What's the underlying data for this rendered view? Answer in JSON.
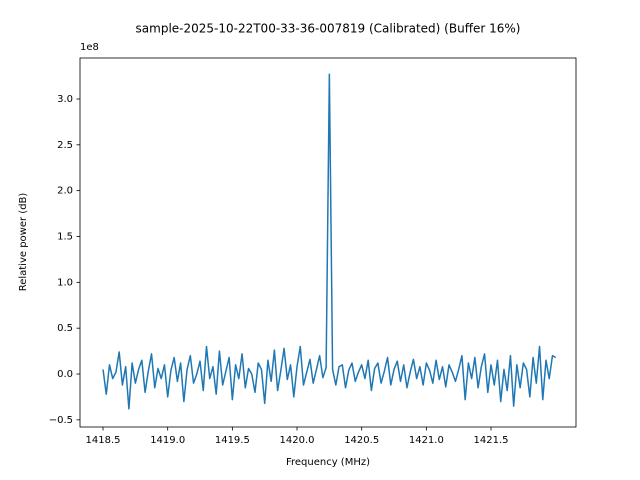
{
  "chart_data": {
    "type": "line",
    "title": "sample-2025-10-22T00-33-36-007819 (Calibrated) (Buffer 16%)",
    "x_label": "Frequency (MHz)",
    "y_label": "Relative power (dB)",
    "y_offset_label": "1e8",
    "color": "#1f77b4",
    "xlim": [
      1418.322,
      1422.157
    ],
    "ylim": [
      -0.578,
      3.447
    ],
    "xticks": [
      1418.5,
      {
        "value": 1419,
        "label": "1419.0"
      },
      1419.5,
      {
        "value": 1420,
        "label": "1420.0"
      },
      1420.5,
      {
        "value": 1421,
        "label": "1421.0"
      },
      1421.5
    ],
    "yticks": [
      {
        "value": -0.5,
        "label": "−0.5"
      },
      {
        "value": 0,
        "label": "0.0"
      },
      0.5,
      {
        "value": 1,
        "label": "1.0"
      },
      1.5,
      {
        "value": 2,
        "label": "2.0"
      },
      2.5,
      {
        "value": 3,
        "label": "3.0"
      }
    ],
    "x": [
      1418.5,
      1418.525,
      1418.55,
      1418.575,
      1418.6,
      1418.625,
      1418.65,
      1418.675,
      1418.7,
      1418.725,
      1418.75,
      1418.775,
      1418.8,
      1418.825,
      1418.85,
      1418.875,
      1418.9,
      1418.925,
      1418.95,
      1418.975,
      1419.0,
      1419.025,
      1419.05,
      1419.075,
      1419.1,
      1419.125,
      1419.15,
      1419.175,
      1419.2,
      1419.225,
      1419.25,
      1419.275,
      1419.3,
      1419.325,
      1419.35,
      1419.375,
      1419.4,
      1419.425,
      1419.45,
      1419.475,
      1419.5,
      1419.525,
      1419.55,
      1419.575,
      1419.6,
      1419.625,
      1419.65,
      1419.675,
      1419.7,
      1419.725,
      1419.75,
      1419.775,
      1419.8,
      1419.825,
      1419.85,
      1419.875,
      1419.9,
      1419.925,
      1419.95,
      1419.975,
      1420.0,
      1420.025,
      1420.05,
      1420.075,
      1420.1,
      1420.125,
      1420.15,
      1420.175,
      1420.2,
      1420.225,
      1420.25,
      1420.275,
      1420.3,
      1420.325,
      1420.35,
      1420.375,
      1420.4,
      1420.425,
      1420.45,
      1420.475,
      1420.5,
      1420.525,
      1420.55,
      1420.575,
      1420.6,
      1420.625,
      1420.65,
      1420.675,
      1420.7,
      1420.725,
      1420.75,
      1420.775,
      1420.8,
      1420.825,
      1420.85,
      1420.875,
      1420.9,
      1420.925,
      1420.95,
      1420.975,
      1421.0,
      1421.025,
      1421.05,
      1421.075,
      1421.1,
      1421.125,
      1421.15,
      1421.175,
      1421.2,
      1421.225,
      1421.25,
      1421.275,
      1421.3,
      1421.325,
      1421.35,
      1421.375,
      1421.4,
      1421.425,
      1421.45,
      1421.475,
      1421.5,
      1421.525,
      1421.55,
      1421.575,
      1421.6,
      1421.625,
      1421.65,
      1421.675,
      1421.7,
      1421.725,
      1421.75,
      1421.775,
      1421.8,
      1421.825,
      1421.85,
      1421.875,
      1421.9,
      1421.925,
      1421.95,
      1421.975,
      1422.0
    ],
    "values": [
      0.05,
      -0.22,
      0.1,
      -0.05,
      0.02,
      0.24,
      -0.12,
      0.08,
      -0.38,
      0.12,
      -0.1,
      0.05,
      0.15,
      -0.2,
      0.03,
      0.22,
      -0.15,
      0.06,
      -0.05,
      0.1,
      -0.25,
      0.04,
      0.18,
      -0.08,
      0.12,
      -0.3,
      0.05,
      0.2,
      -0.1,
      0.0,
      0.14,
      -0.18,
      0.3,
      -0.05,
      0.08,
      -0.22,
      0.25,
      -0.12,
      0.03,
      0.18,
      -0.28,
      0.1,
      -0.05,
      0.22,
      -0.15,
      0.06,
      0.0,
      -0.2,
      0.12,
      0.05,
      -0.32,
      0.15,
      -0.08,
      0.26,
      -0.18,
      0.04,
      0.28,
      -0.06,
      0.1,
      -0.25,
      0.08,
      0.3,
      -0.12,
      0.02,
      0.16,
      -0.1,
      0.05,
      0.2,
      -0.04,
      0.07,
      3.27,
      0.05,
      -0.12,
      0.08,
      0.1,
      -0.15,
      0.04,
      0.12,
      -0.08,
      0.02,
      0.1,
      -0.05,
      0.15,
      -0.18,
      0.06,
      0.12,
      -0.1,
      0.03,
      0.18,
      -0.12,
      0.05,
      0.14,
      -0.08,
      0.1,
      -0.15,
      0.02,
      0.16,
      -0.05,
      0.08,
      -0.12,
      0.12,
      0.04,
      -0.1,
      0.15,
      -0.06,
      0.08,
      -0.14,
      0.1,
      0.02,
      -0.08,
      0.05,
      0.2,
      -0.28,
      0.12,
      -0.05,
      0.18,
      -0.15,
      0.08,
      0.22,
      -0.2,
      0.1,
      -0.12,
      0.15,
      -0.3,
      0.05,
      -0.18,
      0.2,
      -0.35,
      0.1,
      -0.15,
      0.12,
      0.05,
      -0.25,
      0.18,
      -0.1,
      0.3,
      -0.28,
      0.15,
      -0.05,
      0.2,
      0.18
    ]
  }
}
